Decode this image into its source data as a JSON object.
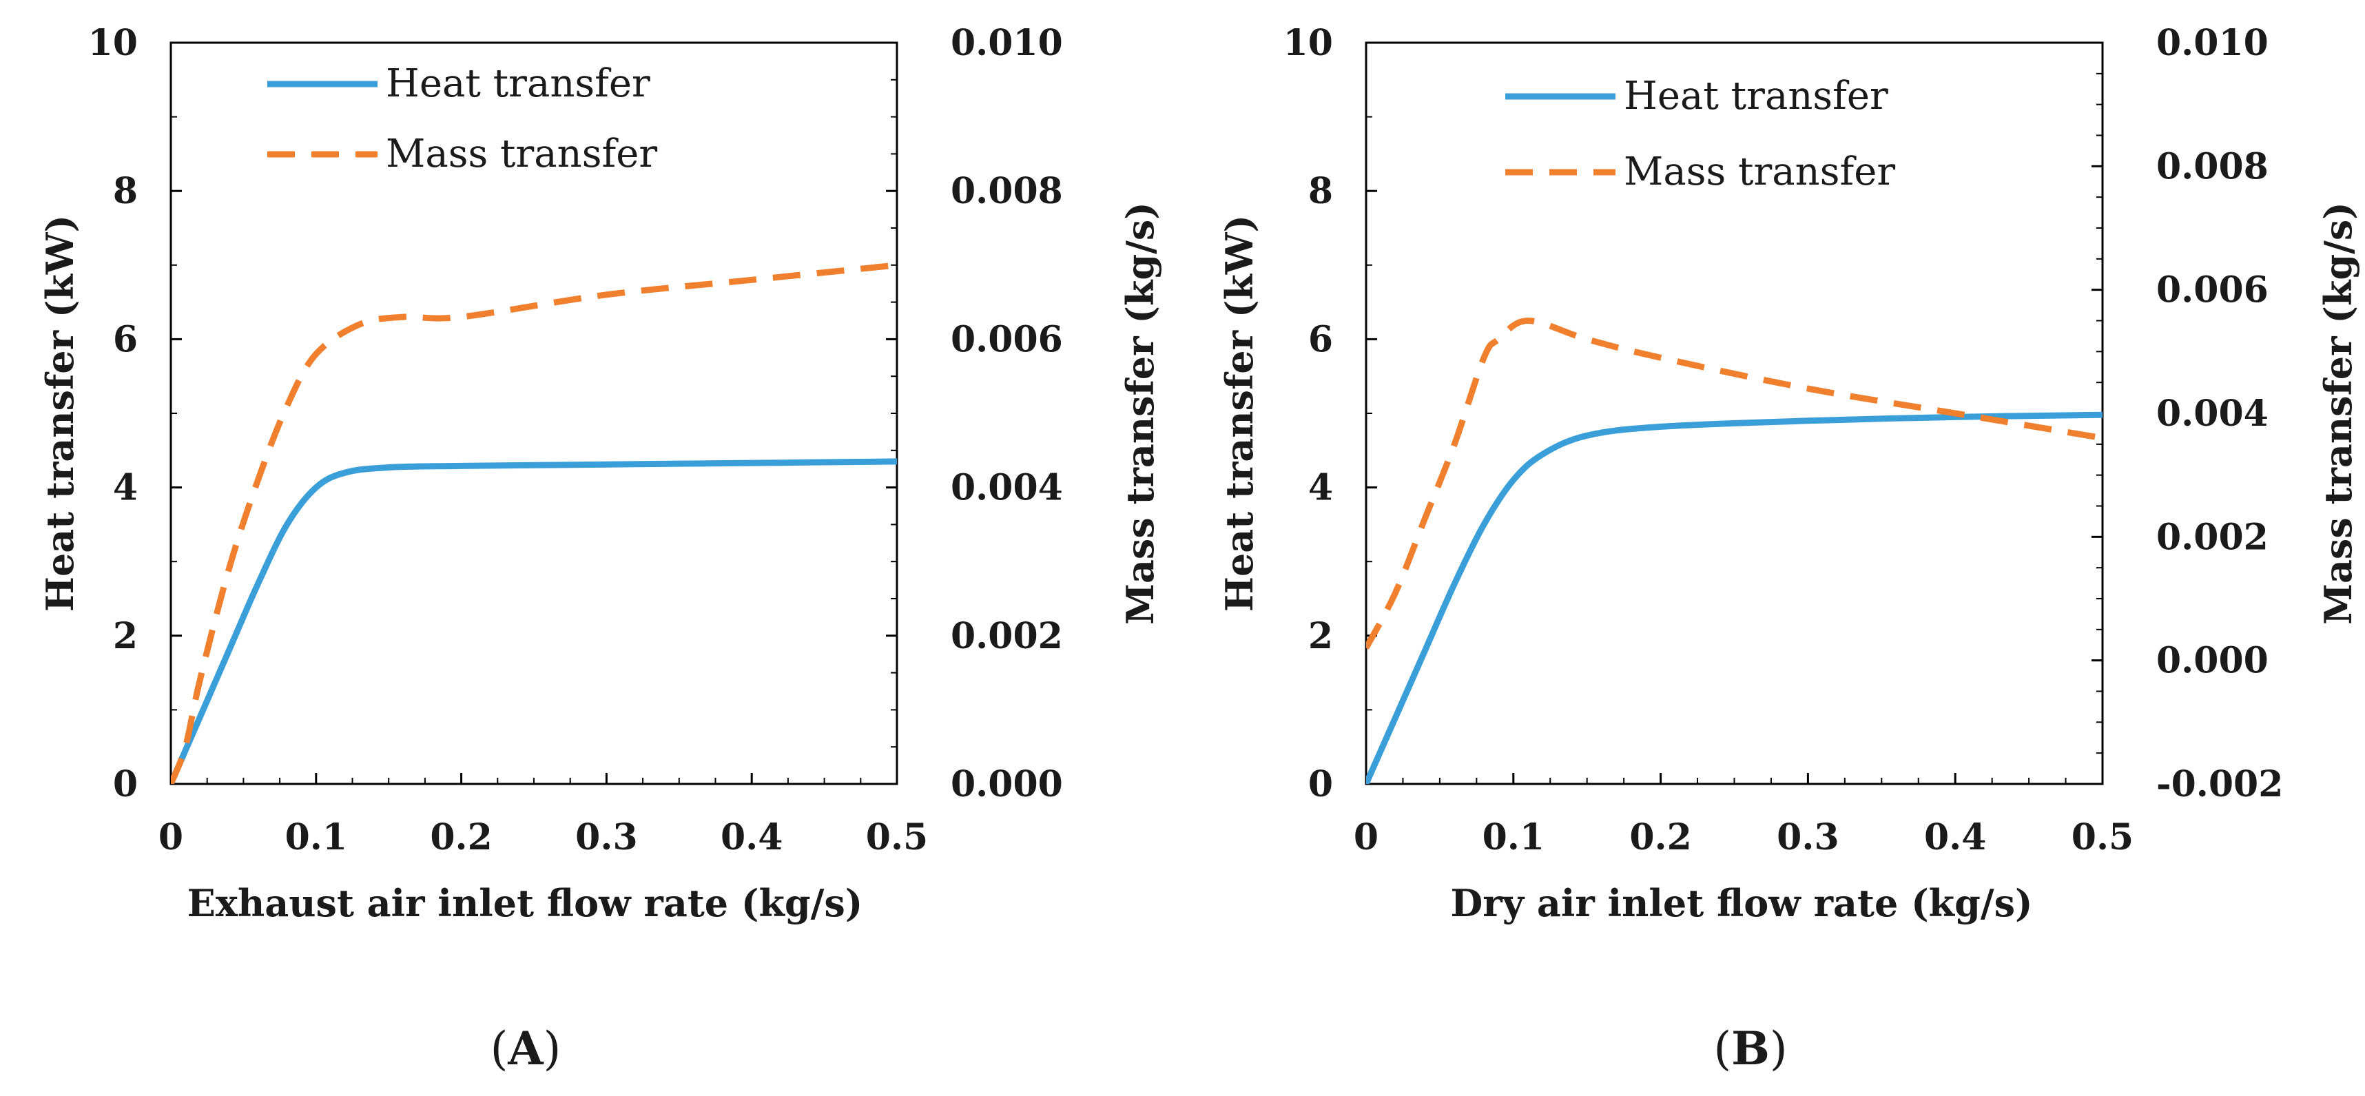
{
  "chart_data": [
    {
      "type": "line",
      "panel_label": "A",
      "panel_label_prefix": "(",
      "panel_label_suffix": ")",
      "xlabel": "Exhaust air inlet  flow rate (kg/s)",
      "ylabel_left": "Heat transfer (kW)",
      "ylabel_right": "Mass transfer (kg/s)",
      "xlim": [
        0,
        0.5
      ],
      "ylim_left": [
        0,
        10
      ],
      "ylim_right": [
        0.0,
        0.01
      ],
      "x_ticks": [
        "0",
        "0.1",
        "0.2",
        "0.3",
        "0.4",
        "0.5"
      ],
      "y_left_ticks": [
        "0",
        "2",
        "4",
        "6",
        "8",
        "10"
      ],
      "y_right_ticks": [
        "0.000",
        "0.002",
        "0.004",
        "0.006",
        "0.008",
        "0.010"
      ],
      "legend": [
        "Heat transfer",
        "Mass transfer"
      ],
      "series": [
        {
          "name": "Heat transfer",
          "axis": "left",
          "color": "#3a9fd9",
          "style": "solid",
          "x": [
            0.0,
            0.02,
            0.04,
            0.06,
            0.08,
            0.1,
            0.12,
            0.15,
            0.2,
            0.3,
            0.4,
            0.5
          ],
          "y": [
            0.0,
            0.9,
            1.8,
            2.7,
            3.5,
            4.0,
            4.2,
            4.27,
            4.29,
            4.31,
            4.33,
            4.35
          ]
        },
        {
          "name": "Mass transfer",
          "axis": "right",
          "color": "#f07f2e",
          "style": "dashed",
          "x": [
            0.0,
            0.01,
            0.02,
            0.04,
            0.06,
            0.08,
            0.1,
            0.13,
            0.16,
            0.2,
            0.3,
            0.4,
            0.5
          ],
          "y": [
            0.0,
            0.0005,
            0.0014,
            0.0029,
            0.0041,
            0.0051,
            0.0058,
            0.0062,
            0.0063,
            0.0063,
            0.0066,
            0.0068,
            0.007
          ]
        }
      ]
    },
    {
      "type": "line",
      "panel_label": "B",
      "panel_label_prefix": "(",
      "panel_label_suffix": ")",
      "xlabel": "Dry air inlet  flow rate (kg/s)",
      "ylabel_left": "Heat transfer (kW)",
      "ylabel_right": "Mass transfer (kg/s)",
      "xlim": [
        0,
        0.5
      ],
      "ylim_left": [
        0,
        10
      ],
      "ylim_right": [
        -0.002,
        0.01
      ],
      "x_ticks": [
        "0",
        "0.1",
        "0.2",
        "0.3",
        "0.4",
        "0.5"
      ],
      "y_left_ticks": [
        "0",
        "2",
        "4",
        "6",
        "8",
        "10"
      ],
      "y_right_ticks": [
        "-0.002",
        "0.000",
        "0.002",
        "0.004",
        "0.006",
        "0.008",
        "0.010"
      ],
      "legend": [
        "Heat transfer",
        "Mass transfer"
      ],
      "series": [
        {
          "name": "Heat transfer",
          "axis": "left",
          "color": "#3a9fd9",
          "style": "solid",
          "x": [
            0.0,
            0.02,
            0.04,
            0.06,
            0.08,
            0.1,
            0.12,
            0.15,
            0.2,
            0.3,
            0.4,
            0.5
          ],
          "y": [
            0.0,
            0.9,
            1.8,
            2.7,
            3.5,
            4.1,
            4.45,
            4.7,
            4.82,
            4.9,
            4.95,
            4.98
          ]
        },
        {
          "name": "Mass transfer",
          "axis": "right",
          "color": "#f07f2e",
          "style": "dashed",
          "x": [
            0.0,
            0.02,
            0.04,
            0.06,
            0.08,
            0.09,
            0.11,
            0.15,
            0.2,
            0.3,
            0.4,
            0.5
          ],
          "y": [
            0.0002,
            0.0011,
            0.0023,
            0.0035,
            0.0049,
            0.0052,
            0.0055,
            0.0052,
            0.0049,
            0.0044,
            0.004,
            0.0036
          ]
        }
      ]
    }
  ]
}
